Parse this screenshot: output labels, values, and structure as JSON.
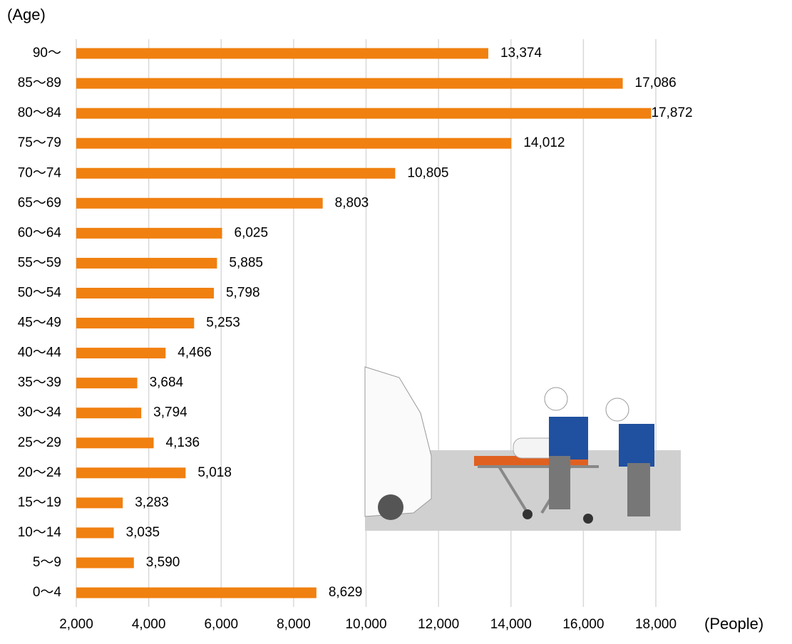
{
  "chart_data": {
    "type": "hbar",
    "y_label": "(Age)",
    "x_label": "(People)",
    "categories": [
      "90〜",
      "85〜89",
      "80〜84",
      "75〜79",
      "70〜74",
      "65〜69",
      "60〜64",
      "55〜59",
      "50〜54",
      "45〜49",
      "40〜44",
      "35〜39",
      "30〜34",
      "25〜29",
      "20〜24",
      "15〜19",
      "10〜14",
      "5〜9",
      "0〜4"
    ],
    "values": [
      13374,
      17086,
      17872,
      14012,
      10805,
      8803,
      6025,
      5885,
      5798,
      5253,
      4466,
      3684,
      3794,
      4136,
      5018,
      3283,
      3035,
      3590,
      8629
    ],
    "value_labels": [
      "13,374",
      "17,086",
      "17,872",
      "14,012",
      "10,805",
      "8,803",
      "6,025",
      "5,885",
      "5,798",
      "5,253",
      "4,466",
      "3,684",
      "3,794",
      "4,136",
      "5,018",
      "3,283",
      "3,035",
      "3,590",
      "8,629"
    ],
    "color": "#f08010",
    "xlim": [
      2000,
      18000
    ],
    "xticks": [
      {
        "value": 2000,
        "label": "2,000"
      },
      {
        "value": 4000,
        "label": "4,000"
      },
      {
        "value": 6000,
        "label": "6,000"
      },
      {
        "value": 8000,
        "label": "8,000"
      },
      {
        "value": 10000,
        "label": "10,000"
      },
      {
        "value": 12000,
        "label": "12,000"
      },
      {
        "value": 14000,
        "label": "14,000"
      },
      {
        "value": 16000,
        "label": "16,000"
      },
      {
        "value": 18000,
        "label": "18,000"
      }
    ],
    "grid": true
  }
}
